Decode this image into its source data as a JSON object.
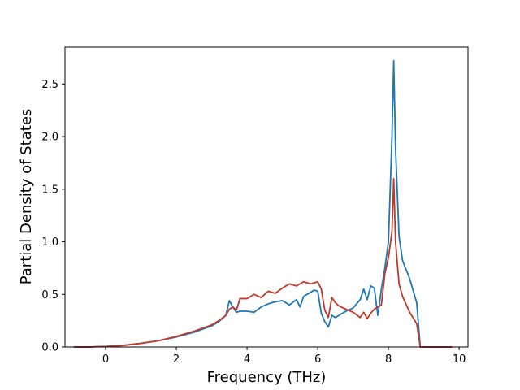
{
  "chart_data": {
    "type": "line",
    "title": "",
    "xlabel": "Frequency (THz)",
    "ylabel": "Partial Density of States",
    "xlim": [
      -1.15,
      10.25
    ],
    "ylim": [
      0,
      2.85
    ],
    "xticks": [
      0,
      2,
      4,
      6,
      8,
      10
    ],
    "xtick_labels": [
      "0",
      "2",
      "4",
      "6",
      "8",
      "10"
    ],
    "yticks": [
      0.0,
      0.5,
      1.0,
      1.5,
      2.0,
      2.5
    ],
    "ytick_labels": [
      "0.0",
      "0.5",
      "1.0",
      "1.5",
      "2.0",
      "2.5"
    ],
    "grid": false,
    "legend": false,
    "series": [
      {
        "color": "#1f77b4",
        "x": [
          -0.9,
          -0.5,
          0.0,
          0.5,
          1.0,
          1.5,
          2.0,
          2.5,
          3.0,
          3.2,
          3.4,
          3.5,
          3.6,
          3.7,
          3.8,
          4.0,
          4.2,
          4.4,
          4.6,
          4.8,
          5.0,
          5.2,
          5.4,
          5.5,
          5.6,
          5.7,
          5.8,
          5.9,
          6.0,
          6.1,
          6.2,
          6.3,
          6.4,
          6.5,
          6.6,
          6.8,
          7.0,
          7.2,
          7.3,
          7.4,
          7.5,
          7.6,
          7.7,
          7.8,
          7.9,
          8.0,
          8.1,
          8.15,
          8.2,
          8.3,
          8.4,
          8.6,
          8.8,
          8.9,
          9.2,
          9.8
        ],
        "y": [
          0.0,
          0.0,
          0.005,
          0.015,
          0.035,
          0.06,
          0.095,
          0.14,
          0.2,
          0.24,
          0.3,
          0.44,
          0.38,
          0.33,
          0.34,
          0.34,
          0.33,
          0.38,
          0.41,
          0.43,
          0.44,
          0.4,
          0.45,
          0.38,
          0.48,
          0.5,
          0.52,
          0.54,
          0.53,
          0.32,
          0.24,
          0.19,
          0.3,
          0.28,
          0.3,
          0.34,
          0.37,
          0.45,
          0.55,
          0.45,
          0.58,
          0.56,
          0.3,
          0.55,
          0.75,
          1.0,
          2.0,
          2.72,
          1.9,
          1.05,
          0.82,
          0.65,
          0.42,
          0.0,
          0.0,
          0.0
        ]
      },
      {
        "color": "#c0392b",
        "x": [
          -0.9,
          -0.5,
          0.0,
          0.5,
          1.0,
          1.5,
          2.0,
          2.5,
          3.0,
          3.2,
          3.4,
          3.5,
          3.6,
          3.7,
          3.8,
          4.0,
          4.2,
          4.4,
          4.6,
          4.8,
          5.0,
          5.2,
          5.4,
          5.6,
          5.8,
          6.0,
          6.1,
          6.2,
          6.3,
          6.4,
          6.5,
          6.6,
          6.8,
          7.0,
          7.2,
          7.3,
          7.4,
          7.5,
          7.6,
          7.7,
          7.8,
          7.9,
          8.0,
          8.1,
          8.15,
          8.2,
          8.3,
          8.4,
          8.6,
          8.8,
          8.9,
          9.2,
          9.8
        ],
        "y": [
          0.0,
          0.0,
          0.005,
          0.015,
          0.035,
          0.06,
          0.1,
          0.15,
          0.21,
          0.25,
          0.3,
          0.36,
          0.38,
          0.35,
          0.46,
          0.46,
          0.5,
          0.47,
          0.53,
          0.51,
          0.56,
          0.6,
          0.58,
          0.62,
          0.6,
          0.62,
          0.55,
          0.35,
          0.28,
          0.47,
          0.42,
          0.39,
          0.36,
          0.33,
          0.28,
          0.33,
          0.27,
          0.32,
          0.36,
          0.38,
          0.4,
          0.7,
          0.85,
          1.1,
          1.6,
          1.0,
          0.6,
          0.48,
          0.33,
          0.22,
          0.0,
          0.0,
          0.0
        ]
      }
    ]
  }
}
